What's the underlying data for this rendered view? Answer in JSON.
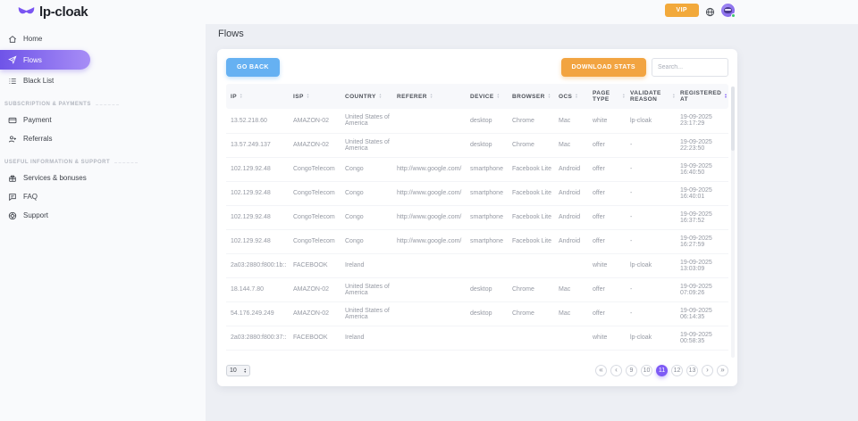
{
  "colors": {
    "accent_purple": "#7e5bf5",
    "sidebar_gradient_start": "#6f54e8",
    "sidebar_gradient_end": "#a78df6",
    "vip_orange": "#f2a93b",
    "go_back_blue": "#66b1f2",
    "download_orange": "#f2a441",
    "online_green": "#39c66b"
  },
  "topbar": {
    "logo_text": "lp-cloak",
    "vip_label": "VIP"
  },
  "sidebar": {
    "home_label": "Home",
    "flows_label": "Flows",
    "blacklist_label": "Black List",
    "payments_section_label": "SUBSCRIPTION & PAYMENTS",
    "payment_label": "Payment",
    "referrals_label": "Referrals",
    "support_section_label": "USEFUL INFORMATION & SUPPORT",
    "services_label": "Services & bonuses",
    "faq_label": "FAQ",
    "support_label": "Support"
  },
  "main": {
    "page_title": "Flows",
    "toolbar": {
      "go_back_label": "GO BACK",
      "download_stats_label": "DOWNLOAD STATS",
      "search_placeholder": "Search..."
    },
    "table": {
      "columns": [
        "IP",
        "ISP",
        "COUNTRY",
        "REFERER",
        "DEVICE",
        "BROWSER",
        "OCS",
        "PAGE TYPE",
        "VALIDATE REASON",
        "REGISTERED AT"
      ],
      "sort": {
        "column": "REGISTERED AT",
        "direction": "desc"
      },
      "rows": [
        {
          "ip": "13.52.218.60",
          "isp": "AMAZON-02",
          "country": "United States of America",
          "referer": "",
          "device": "desktop",
          "browser": "Chrome",
          "ocs": "Mac",
          "page_type": "white",
          "validate_reason": "lp-cloak",
          "registered_at": "19-09-2025 23:17:29"
        },
        {
          "ip": "13.57.249.137",
          "isp": "AMAZON-02",
          "country": "United States of America",
          "referer": "",
          "device": "desktop",
          "browser": "Chrome",
          "ocs": "Mac",
          "page_type": "offer",
          "validate_reason": "-",
          "registered_at": "19-09-2025 22:23:50"
        },
        {
          "ip": "102.129.92.48",
          "isp": "CongoTelecom",
          "country": "Congo",
          "referer": "http://www.google.com/",
          "device": "smartphone",
          "browser": "Facebook Lite",
          "ocs": "Android",
          "page_type": "offer",
          "validate_reason": "-",
          "registered_at": "19-09-2025 16:40:50"
        },
        {
          "ip": "102.129.92.48",
          "isp": "CongoTelecom",
          "country": "Congo",
          "referer": "http://www.google.com/",
          "device": "smartphone",
          "browser": "Facebook Lite",
          "ocs": "Android",
          "page_type": "offer",
          "validate_reason": "-",
          "registered_at": "19-09-2025 16:40:01"
        },
        {
          "ip": "102.129.92.48",
          "isp": "CongoTelecom",
          "country": "Congo",
          "referer": "http://www.google.com/",
          "device": "smartphone",
          "browser": "Facebook Lite",
          "ocs": "Android",
          "page_type": "offer",
          "validate_reason": "-",
          "registered_at": "19-09-2025 16:37:52"
        },
        {
          "ip": "102.129.92.48",
          "isp": "CongoTelecom",
          "country": "Congo",
          "referer": "http://www.google.com/",
          "device": "smartphone",
          "browser": "Facebook Lite",
          "ocs": "Android",
          "page_type": "offer",
          "validate_reason": "-",
          "registered_at": "19-09-2025 16:27:59"
        },
        {
          "ip": "2a03:2880:f800:1b::",
          "isp": "FACEBOOK",
          "country": "Ireland",
          "referer": "",
          "device": "",
          "browser": "",
          "ocs": "",
          "page_type": "white",
          "validate_reason": "lp-cloak",
          "registered_at": "19-09-2025 13:03:09"
        },
        {
          "ip": "18.144.7.80",
          "isp": "AMAZON-02",
          "country": "United States of America",
          "referer": "",
          "device": "desktop",
          "browser": "Chrome",
          "ocs": "Mac",
          "page_type": "offer",
          "validate_reason": "-",
          "registered_at": "19-09-2025 07:09:26"
        },
        {
          "ip": "54.176.249.249",
          "isp": "AMAZON-02",
          "country": "United States of America",
          "referer": "",
          "device": "desktop",
          "browser": "Chrome",
          "ocs": "Mac",
          "page_type": "offer",
          "validate_reason": "-",
          "registered_at": "19-09-2025 06:14:35"
        },
        {
          "ip": "2a03:2880:f800:37::",
          "isp": "FACEBOOK",
          "country": "Ireland",
          "referer": "",
          "device": "",
          "browser": "",
          "ocs": "",
          "page_type": "white",
          "validate_reason": "lp-cloak",
          "registered_at": "19-09-2025 00:58:35"
        }
      ]
    },
    "pagination": {
      "page_size": "10",
      "first": "«",
      "prev": "‹",
      "next": "›",
      "last": "»",
      "pages": [
        "9",
        "10",
        "11",
        "12",
        "13"
      ],
      "active_page": "11"
    }
  }
}
